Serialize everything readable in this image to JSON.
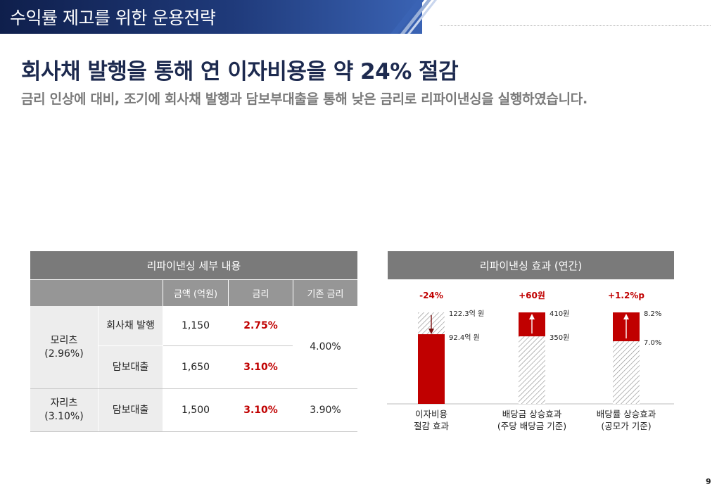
{
  "header": {
    "title": "수익률 제고를 위한 운용전략"
  },
  "main_title": "회사채 발행을 통해 연 이자비용을 약 24% 절감",
  "subtitle": "금리 인상에 대비, 조기에 회사채 발행과 담보부대출을 통해 낮은 금리로 리파이낸싱을 실행하였습니다.",
  "table": {
    "title": "리파이낸싱 세부 내용",
    "columns": [
      "금액 (억원)",
      "금리",
      "기존 금리"
    ],
    "groups": [
      {
        "name": "모리츠",
        "rate": "(2.96%)",
        "old_rate": "4.00%",
        "rows": [
          {
            "type": "회사채 발행",
            "amount": "1,150",
            "rate": "2.75%"
          },
          {
            "type": "담보대출",
            "amount": "1,650",
            "rate": "3.10%"
          }
        ]
      },
      {
        "name": "자리츠",
        "rate": "(3.10%)",
        "old_rate": "3.90%",
        "rows": [
          {
            "type": "담보대출",
            "amount": "1,500",
            "rate": "3.10%"
          }
        ]
      }
    ]
  },
  "chart": {
    "title": "리파이낸싱 효과 (연간)"
  },
  "chart_data": {
    "type": "bar",
    "title": "리파이낸싱 효과 (연간)",
    "categories": [
      "이자비용\n절감 효과",
      "배당금 상승효과\n(주당 배당금 기준)",
      "배당률 상승효과\n(공모가 기준)"
    ],
    "bars": [
      {
        "change_label": "-24%",
        "before": 122.3,
        "after": 92.4,
        "before_label": "122.3억 원",
        "after_label": "92.4억 원",
        "direction": "down"
      },
      {
        "change_label": "+60원",
        "before": 350,
        "after": 410,
        "before_label": "350원",
        "after_label": "410원",
        "direction": "up"
      },
      {
        "change_label": "+1.2%p",
        "before": 7.0,
        "after": 8.2,
        "before_label": "7.0%",
        "after_label": "8.2%",
        "direction": "up"
      }
    ],
    "colors": {
      "highlight": "#c00000",
      "accent_text": "#c00000"
    }
  },
  "page_number": "9"
}
